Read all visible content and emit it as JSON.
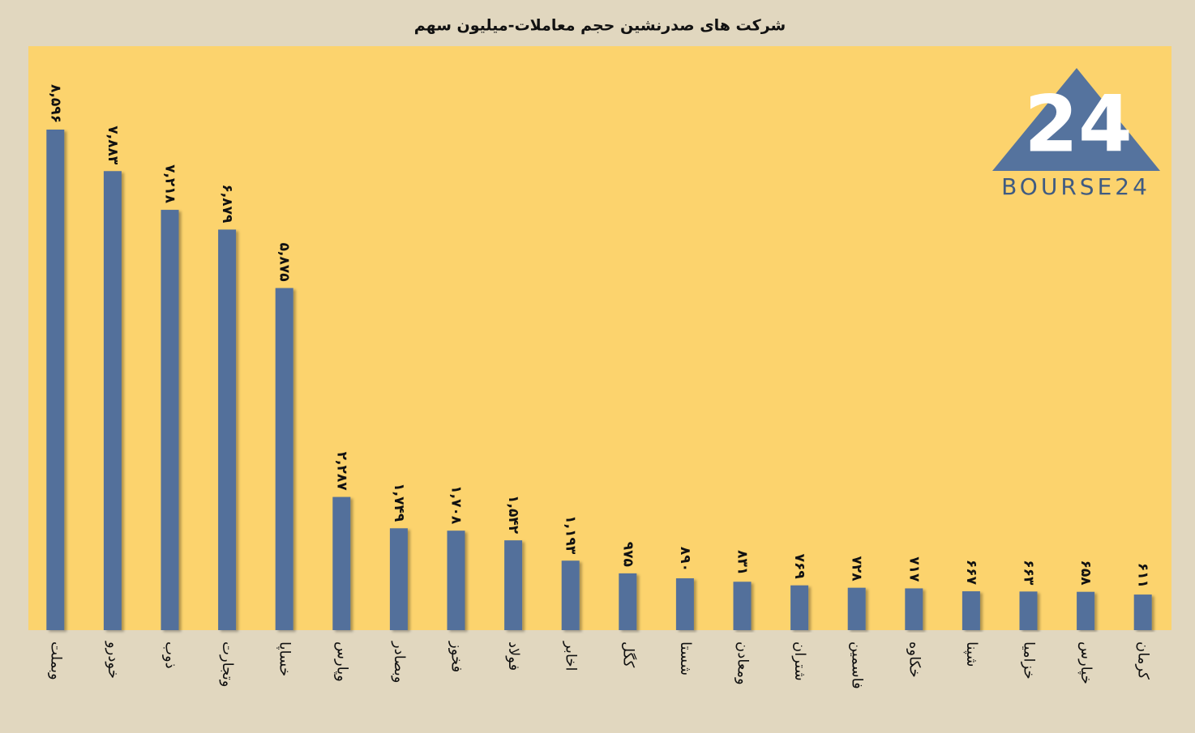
{
  "chart_data": {
    "type": "bar",
    "title": "شرکت های صدرنشین حجم معاملات-میلیون سهم",
    "logo_mark": "24",
    "logo_text": "BOURSE24",
    "categories": [
      "وبملت",
      "خودرو",
      "ذوب",
      "وتجارت",
      "خساپا",
      "وپارس",
      "وبصادر",
      "فخوز",
      "فولاد",
      "اخابر",
      "کگل",
      "شستا",
      "ومعادن",
      "شتران",
      "فاسمین",
      "خکاوه",
      "شپنا",
      "خزامیا",
      "خپارس",
      "کرمان"
    ],
    "values": [
      8596,
      7883,
      7218,
      6879,
      5875,
      2287,
      1749,
      1708,
      1542,
      1193,
      975,
      890,
      831,
      769,
      728,
      717,
      667,
      663,
      658,
      611
    ],
    "value_labels": [
      "۸,۵۹۶",
      "۷,۸۸۳",
      "۷,۲۱۸",
      "۶,۸۷۹",
      "۵,۸۷۵",
      "۲,۲۸۷",
      "۱,۷۴۹",
      "۱,۷۰۸",
      "۱,۵۴۲",
      "۱,۱۹۳",
      "۹۷۵",
      "۸۹۰",
      "۸۳۱",
      "۷۶۹",
      "۷۲۸",
      "۷۱۷",
      "۶۶۷",
      "۶۶۳",
      "۶۵۸",
      "۶۱۱"
    ],
    "color": "#52709b"
  }
}
